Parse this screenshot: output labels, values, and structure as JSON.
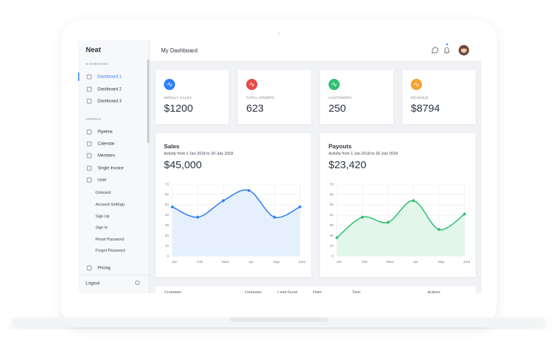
{
  "sidebar": {
    "brand": "Neat",
    "groups": [
      {
        "heading": "DASHBOARDS",
        "items": [
          "Dashboard 1",
          "Dashboard 2",
          "Dashboard 3"
        ]
      },
      {
        "heading": "GENERAL",
        "items": [
          "Pipeline",
          "Calendar",
          "Members",
          "Single Invoice",
          "User"
        ]
      }
    ],
    "subitems": [
      "Onboard",
      "Account Settings",
      "Sign Up",
      "Sign In",
      "Reset Password",
      "Forgot Password"
    ],
    "pricing": "Pricing",
    "logout": "Logout"
  },
  "header": {
    "title": "My Dashboard"
  },
  "stats": [
    {
      "label": "WEEKLY SALES",
      "value": "$1200",
      "color": "#2d7ff9"
    },
    {
      "label": "TOTAL ORDERS",
      "value": "623",
      "color": "#ea4a4a"
    },
    {
      "label": "CUSTOMERS",
      "value": "250",
      "color": "#2fbf71"
    },
    {
      "label": "REVENUE",
      "value": "$8794",
      "color": "#f7a032"
    }
  ],
  "chart_data": [
    {
      "type": "line",
      "title": "Sales",
      "subtitle": "Activity from 1 Jan 2018 to 30 July 2018",
      "total": "$45,000",
      "categories": [
        "Jan",
        "Feb",
        "Mars",
        "Apr",
        "May",
        "June"
      ],
      "values": [
        48,
        38,
        54,
        64,
        38,
        48
      ],
      "color": "#2d7ff9",
      "fill": "#e6f0fd",
      "ylim": [
        0,
        70
      ],
      "yticks": [
        0,
        10,
        20,
        30,
        40,
        50,
        60,
        70
      ],
      "grid": true
    },
    {
      "type": "line",
      "title": "Payouts",
      "subtitle": "Activity from 1 Jan 2018 to 30 July 2018",
      "total": "$23,420",
      "categories": [
        "Jan",
        "Feb",
        "Mars",
        "Apr",
        "May",
        "June"
      ],
      "values": [
        18,
        38,
        33,
        54,
        26,
        41
      ],
      "color": "#2fbf71",
      "fill": "#e3f6ea",
      "ylim": [
        0,
        70
      ],
      "yticks": [
        0,
        10,
        20,
        30,
        40,
        50,
        60,
        70
      ],
      "grid": true
    }
  ],
  "table": {
    "columns": [
      "Customer",
      "Company",
      "Lead Score",
      "Date",
      "Tags",
      "Actions"
    ]
  }
}
